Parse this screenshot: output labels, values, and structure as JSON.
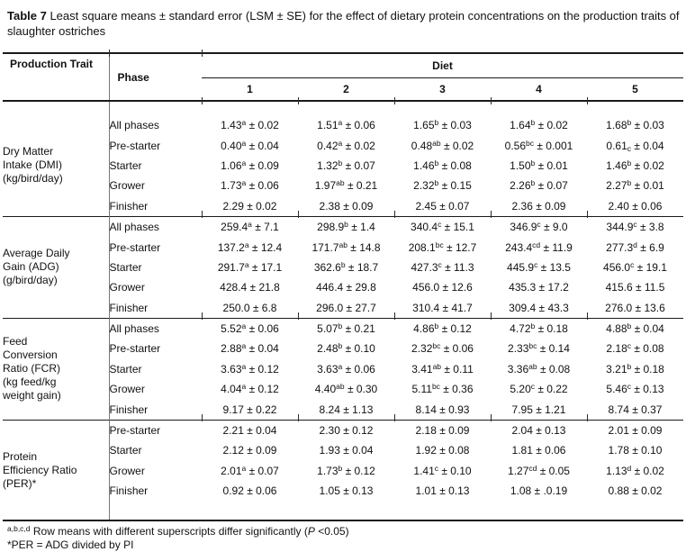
{
  "title": {
    "label": "Table 7",
    "text": " Least square means ± standard error (LSM ± SE) for the effect of dietary protein concentrations on the production traits of slaughter ostriches"
  },
  "header": {
    "production_trait": "Production Trait",
    "phase": "Phase",
    "diet": "Diet",
    "diet_cols": [
      "1",
      "2",
      "3",
      "4",
      "5"
    ]
  },
  "blocks": [
    {
      "id": "dmi",
      "trait_lines": [
        "Dry Matter",
        "Intake (DMI)",
        "(kg/bird/day)"
      ],
      "rows": [
        {
          "phase": "All phases",
          "cells": [
            {
              "mean": "1.43",
              "sup": "a",
              "se": "0.02"
            },
            {
              "mean": "1.51",
              "sup": "a",
              "se": "0.06"
            },
            {
              "mean": "1.65",
              "sup": "b",
              "se": "0.03"
            },
            {
              "mean": "1.64",
              "sup": "b",
              "se": "0.02"
            },
            {
              "mean": "1.68",
              "sup": "b",
              "se": "0.03"
            }
          ]
        },
        {
          "phase": "Pre-starter",
          "cells": [
            {
              "mean": "0.40",
              "sup": "a",
              "se": "0.04"
            },
            {
              "mean": "0.42",
              "sup": "a",
              "se": "0.02"
            },
            {
              "mean": "0.48",
              "sup": "ab",
              "se": "0.02"
            },
            {
              "mean": "0.56",
              "sup": "bc",
              "se": "0.001"
            },
            {
              "mean": "0.61",
              "sub": "c",
              "se": "0.04"
            }
          ]
        },
        {
          "phase": "Starter",
          "cells": [
            {
              "mean": "1.06",
              "sup": "a",
              "se": "0.09"
            },
            {
              "mean": "1.32",
              "sup": "b",
              "se": "0.07"
            },
            {
              "mean": "1.46",
              "sup": "b",
              "se": "0.08"
            },
            {
              "mean": "1.50",
              "sup": "b",
              "se": "0.01"
            },
            {
              "mean": "1.46",
              "sup": "b",
              "se": "0.02"
            }
          ]
        },
        {
          "phase": "Grower",
          "cells": [
            {
              "mean": "1.73",
              "sup": "a",
              "se": "0.06"
            },
            {
              "mean": "1.97",
              "sup": "ab",
              "se": "0.21"
            },
            {
              "mean": "2.32",
              "sup": "b",
              "se": "0.15"
            },
            {
              "mean": "2.26",
              "sup": "b",
              "se": "0.07"
            },
            {
              "mean": "2.27",
              "sup": "b",
              "se": "0.01"
            }
          ]
        },
        {
          "phase": "Finisher",
          "cells": [
            {
              "mean": "2.29",
              "se": "0.02"
            },
            {
              "mean": "2.38",
              "se": "0.09"
            },
            {
              "mean": "2.45",
              "se": "0.07"
            },
            {
              "mean": "2.36",
              "se": "0.09"
            },
            {
              "mean": "2.40",
              "se": "0.06"
            }
          ]
        }
      ]
    },
    {
      "id": "adg",
      "trait_lines": [
        "Average Daily",
        "Gain (ADG)",
        "(g/bird/day)"
      ],
      "rows": [
        {
          "phase": "All phases",
          "cells": [
            {
              "mean": "259.4",
              "sup": "a",
              "se": "7.1"
            },
            {
              "mean": "298.9",
              "sup": "b",
              "se": "1.4"
            },
            {
              "mean": "340.4",
              "sup": "c",
              "se": "15.1"
            },
            {
              "mean": "346.9",
              "sup": "c",
              "se": "9.0"
            },
            {
              "mean": "344.9",
              "sup": "c",
              "se": "3.8"
            }
          ]
        },
        {
          "phase": "Pre-starter",
          "cells": [
            {
              "mean": "137.2",
              "sup": "a",
              "se": "12.4"
            },
            {
              "mean": "171.7",
              "sup": "ab",
              "se": "14.8"
            },
            {
              "mean": "208.1",
              "sup": "bc",
              "se": "12.7"
            },
            {
              "mean": "243.4",
              "sup": "cd",
              "se": "11.9"
            },
            {
              "mean": "277.3",
              "sup": "d",
              "se": "6.9"
            }
          ]
        },
        {
          "phase": "Starter",
          "cells": [
            {
              "mean": "291.7",
              "sup": "a",
              "se": "17.1"
            },
            {
              "mean": "362.6",
              "sup": "b",
              "se": "18.7"
            },
            {
              "mean": "427.3",
              "sup": "c",
              "se": "11.3"
            },
            {
              "mean": "445.9",
              "sup": "c",
              "se": "13.5"
            },
            {
              "mean": "456.0",
              "sup": "c",
              "se": "19.1"
            }
          ]
        },
        {
          "phase": "Grower",
          "cells": [
            {
              "mean": "428.4",
              "se": "21.8"
            },
            {
              "mean": "446.4",
              "se": "29.8"
            },
            {
              "mean": "456.0",
              "se": "12.6"
            },
            {
              "mean": "435.3",
              "se": "17.2"
            },
            {
              "mean": "415.6",
              "se": "11.5"
            }
          ]
        },
        {
          "phase": "Finisher",
          "cells": [
            {
              "mean": "250.0",
              "se": "6.8"
            },
            {
              "mean": "296.0",
              "se": "27.7"
            },
            {
              "mean": "310.4",
              "se": "41.7"
            },
            {
              "mean": "309.4",
              "se": "43.3"
            },
            {
              "mean": "276.0",
              "se": "13.6"
            }
          ]
        }
      ]
    },
    {
      "id": "fcr",
      "trait_lines": [
        "Feed",
        "Conversion",
        "Ratio (FCR)",
        "(kg feed/kg",
        "weight gain)"
      ],
      "rows": [
        {
          "phase": "All phases",
          "cells": [
            {
              "mean": "5.52",
              "sup": "a",
              "se": "0.06"
            },
            {
              "mean": "5.07",
              "sup": "b",
              "se": "0.21"
            },
            {
              "mean": "4.86",
              "sup": "b",
              "se": "0.12"
            },
            {
              "mean": "4.72",
              "sup": "b",
              "se": "0.18"
            },
            {
              "mean": "4.88",
              "sup": "b",
              "se": "0.04"
            }
          ]
        },
        {
          "phase": "Pre-starter",
          "cells": [
            {
              "mean": "2.88",
              "sup": "a",
              "se": "0.04"
            },
            {
              "mean": "2.48",
              "sup": "b",
              "se": "0.10"
            },
            {
              "mean": "2.32",
              "sup": "bc",
              "se": "0.06"
            },
            {
              "mean": "2.33",
              "sup": "bc",
              "se": "0.14"
            },
            {
              "mean": "2.18",
              "sup": "c",
              "se": "0.08"
            }
          ]
        },
        {
          "phase": "Starter",
          "cells": [
            {
              "mean": "3.63",
              "sup": "a",
              "se": "0.12"
            },
            {
              "mean": "3.63",
              "sup": "a",
              "se": "0.06"
            },
            {
              "mean": "3.41",
              "sup": "ab",
              "se": "0.11"
            },
            {
              "mean": "3.36",
              "sup": "ab",
              "se": "0.08"
            },
            {
              "mean": "3.21",
              "sup": "b",
              "se": "0.18"
            }
          ]
        },
        {
          "phase": "Grower",
          "cells": [
            {
              "mean": "4.04",
              "sup": "a",
              "se": "0.12"
            },
            {
              "mean": "4.40",
              "sup": "ab",
              "se": "0.30"
            },
            {
              "mean": "5.11",
              "sup": "bc",
              "se": "0.36"
            },
            {
              "mean": "5.20",
              "sup": "c",
              "se": "0.22"
            },
            {
              "mean": "5.46",
              "sup": "c",
              "se": "0.13"
            }
          ]
        },
        {
          "phase": "Finisher",
          "cells": [
            {
              "mean": "9.17",
              "se": "0.22"
            },
            {
              "mean": "8.24",
              "se": "1.13"
            },
            {
              "mean": "8.14",
              "se": "0.93"
            },
            {
              "mean": "7.95",
              "se": "1.21"
            },
            {
              "mean": "8.74",
              "se": "0.37"
            }
          ]
        }
      ]
    },
    {
      "id": "per",
      "trait_lines": [
        "Protein",
        "Efficiency Ratio",
        "(PER)*"
      ],
      "rows": [
        {
          "phase": "Pre-starter",
          "cells": [
            {
              "mean": "2.21",
              "se": "0.04"
            },
            {
              "mean": "2.30",
              "se": "0.12"
            },
            {
              "mean": "2.18",
              "se": "0.09"
            },
            {
              "mean": "2.04",
              "se": "0.13"
            },
            {
              "mean": "2.01",
              "se": "0.09"
            }
          ]
        },
        {
          "phase": "Starter",
          "cells": [
            {
              "mean": "2.12",
              "se": "0.09"
            },
            {
              "mean": "1.93",
              "se": "0.04"
            },
            {
              "mean": "1.92",
              "se": "0.08"
            },
            {
              "mean": "1.81",
              "se": "0.06"
            },
            {
              "mean": "1.78",
              "se": "0.10"
            }
          ]
        },
        {
          "phase": "Grower",
          "cells": [
            {
              "mean": "2.01",
              "sup": "a",
              "se": "0.07"
            },
            {
              "mean": "1.73",
              "sup": "b",
              "se": "0.12"
            },
            {
              "mean": "1.41",
              "sup": "c",
              "se": "0.10"
            },
            {
              "mean": "1.27",
              "sup": "cd",
              "se": "0.05"
            },
            {
              "mean": "1.13",
              "sup": "d",
              "se": "0.02"
            }
          ]
        },
        {
          "phase": "Finisher",
          "cells": [
            {
              "mean": "0.92",
              "se": "0.06"
            },
            {
              "mean": "1.05",
              "se": "0.13"
            },
            {
              "mean": "1.01",
              "se": "0.13"
            },
            {
              "mean": "1.08",
              "se": ".0.19"
            },
            {
              "mean": "0.88",
              "se": "0.02"
            }
          ]
        }
      ]
    }
  ],
  "footnotes": {
    "sig_sup": "a,b,c,d",
    "sig_pre": " Row means with different superscripts differ significantly (",
    "sig_italic": "P",
    "sig_post": " <0.05)",
    "per_note": "*PER = ADG divided by PI"
  }
}
